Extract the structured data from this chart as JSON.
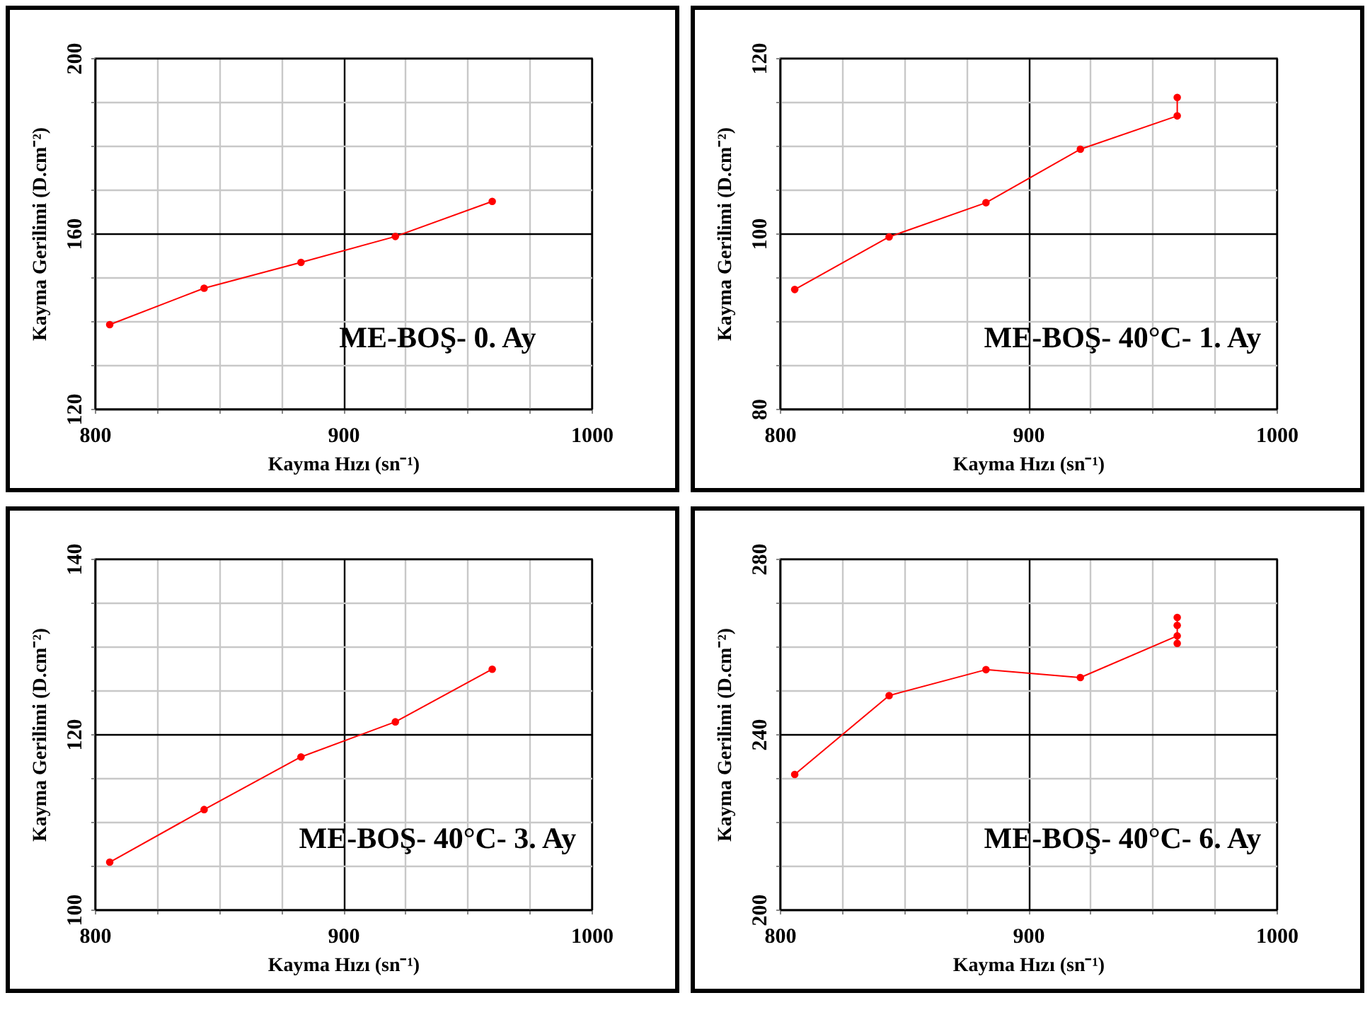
{
  "chart_data": [
    {
      "type": "line",
      "xlabel": "Kayma Hızı (sn⁻¹)",
      "ylabel": "Kayma Gerilimi  (D.cm⁻²)",
      "annotations": [
        "ME-BOŞ- 0. Ay"
      ],
      "x": [
        806,
        844,
        883,
        921,
        960
      ],
      "xlim": [
        800,
        1000
      ],
      "ylim": [
        120,
        200
      ],
      "xticks": [
        800,
        {
          "value": 825,
          "label": null
        },
        {
          "value": 850,
          "label": null
        },
        {
          "value": 875,
          "label": null
        },
        900,
        {
          "value": 925,
          "label": null
        },
        {
          "value": 950,
          "label": null
        },
        {
          "value": 975,
          "label": null
        },
        1000
      ],
      "yticks": [
        120,
        {
          "value": 130,
          "label": null
        },
        {
          "value": 140,
          "label": null
        },
        {
          "value": 150,
          "label": null
        },
        160,
        {
          "value": 170,
          "label": null
        },
        {
          "value": 180,
          "label": null
        },
        {
          "value": 190,
          "label": null
        },
        200
      ],
      "grid": true,
      "marker": "circle",
      "series": [
        {
          "color": "#ff0000",
          "values": [
            139.2,
            147.5,
            153.4,
            159.3,
            167.3
          ]
        }
      ]
    },
    {
      "type": "line",
      "xlabel": "Kayma Hızı (sn⁻¹)",
      "ylabel": "Kayma Gerilimi  (D.cm⁻²)",
      "annotations": [
        "ME-BOŞ- 40°C- 1. Ay"
      ],
      "x": [
        806,
        844,
        883,
        921,
        960,
        960
      ],
      "xlim": [
        800,
        1000
      ],
      "ylim": [
        80,
        120
      ],
      "xticks": [
        800,
        {
          "value": 825,
          "label": null
        },
        {
          "value": 850,
          "label": null
        },
        {
          "value": 875,
          "label": null
        },
        900,
        {
          "value": 925,
          "label": null
        },
        {
          "value": 950,
          "label": null
        },
        {
          "value": 975,
          "label": null
        },
        1000
      ],
      "yticks": [
        80,
        {
          "value": 85,
          "label": null
        },
        {
          "value": 90,
          "label": null
        },
        {
          "value": 95,
          "label": null
        },
        100,
        {
          "value": 105,
          "label": null
        },
        {
          "value": 110,
          "label": null
        },
        {
          "value": 115,
          "label": null
        },
        120
      ],
      "grid": true,
      "marker": "circle",
      "series": [
        {
          "color": "#ff0000",
          "values": [
            93.6,
            99.6,
            103.5,
            109.6,
            113.4,
            115.5
          ]
        }
      ]
    },
    {
      "type": "line",
      "xlabel": "Kayma Hızı (sn⁻¹)",
      "ylabel": "Kayma Gerilimi  (D.cm⁻²)",
      "annotations": [
        "ME-BOŞ- 40°C- 3. Ay"
      ],
      "x": [
        806,
        844,
        883,
        921,
        960
      ],
      "xlim": [
        800,
        1000
      ],
      "ylim": [
        100,
        140
      ],
      "xticks": [
        800,
        {
          "value": 825,
          "label": null
        },
        {
          "value": 850,
          "label": null
        },
        {
          "value": 875,
          "label": null
        },
        900,
        {
          "value": 925,
          "label": null
        },
        {
          "value": 950,
          "label": null
        },
        {
          "value": 975,
          "label": null
        },
        1000
      ],
      "yticks": [
        100,
        {
          "value": 105,
          "label": null
        },
        {
          "value": 110,
          "label": null
        },
        {
          "value": 115,
          "label": null
        },
        120,
        {
          "value": 125,
          "label": null
        },
        {
          "value": 130,
          "label": null
        },
        {
          "value": 135,
          "label": null
        },
        140
      ],
      "grid": true,
      "marker": "circle",
      "series": [
        {
          "color": "#ff0000",
          "values": [
            105.4,
            111.4,
            117.4,
            121.4,
            127.4
          ]
        }
      ]
    },
    {
      "type": "line",
      "xlabel": "Kayma Hızı (sn⁻¹)",
      "ylabel": "Kayma Gerilimi  (D.cm⁻²)",
      "annotations": [
        "ME-BOŞ- 40°C- 6. Ay"
      ],
      "x": [
        806,
        844,
        883,
        921,
        960,
        960,
        960,
        960
      ],
      "xlim": [
        800,
        1000
      ],
      "ylim": [
        200,
        280
      ],
      "xticks": [
        800,
        {
          "value": 825,
          "label": null
        },
        {
          "value": 850,
          "label": null
        },
        {
          "value": 875,
          "label": null
        },
        900,
        {
          "value": 925,
          "label": null
        },
        {
          "value": 950,
          "label": null
        },
        {
          "value": 975,
          "label": null
        },
        1000
      ],
      "yticks": [
        200,
        {
          "value": 210,
          "label": null
        },
        {
          "value": 220,
          "label": null
        },
        {
          "value": 230,
          "label": null
        },
        240,
        {
          "value": 250,
          "label": null
        },
        {
          "value": 260,
          "label": null
        },
        {
          "value": 270,
          "label": null
        },
        280
      ],
      "grid": true,
      "marker": "circle",
      "series": [
        {
          "color": "#ff0000",
          "values": [
            230.8,
            248.8,
            254.7,
            252.9,
            262.4,
            260.7,
            264.8,
            266.6
          ]
        }
      ]
    }
  ]
}
